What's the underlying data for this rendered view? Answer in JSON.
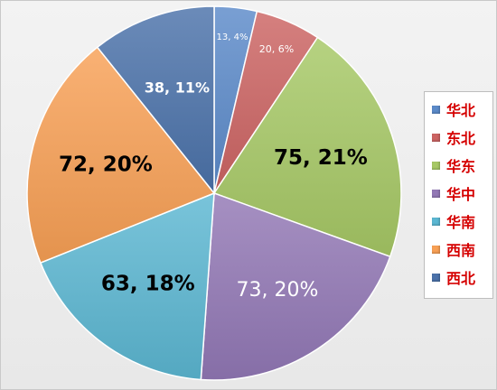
{
  "chart_data": {
    "type": "pie",
    "slices": [
      {
        "category": "华北",
        "value": 13,
        "label": "13, 4%",
        "color": "#5b8ac9"
      },
      {
        "category": "东北",
        "value": 20,
        "label": "20, 6%",
        "color": "#cc6463"
      },
      {
        "category": "华东",
        "value": 75,
        "label": "75, 21%",
        "color": "#a6c865"
      },
      {
        "category": "华中",
        "value": 73,
        "label": "73, 20%",
        "color": "#9278b5"
      },
      {
        "category": "华南",
        "value": 63,
        "label": "63, 18%",
        "color": "#5bb7d2"
      },
      {
        "category": "西南",
        "value": 72,
        "label": "72, 20%",
        "color": "#f8a055"
      },
      {
        "category": "西北",
        "value": 38,
        "label": "38, 11%",
        "color": "#4b72aa"
      }
    ],
    "legend_position": "right",
    "start_angle": "12 o'clock",
    "direction": "clockwise"
  }
}
